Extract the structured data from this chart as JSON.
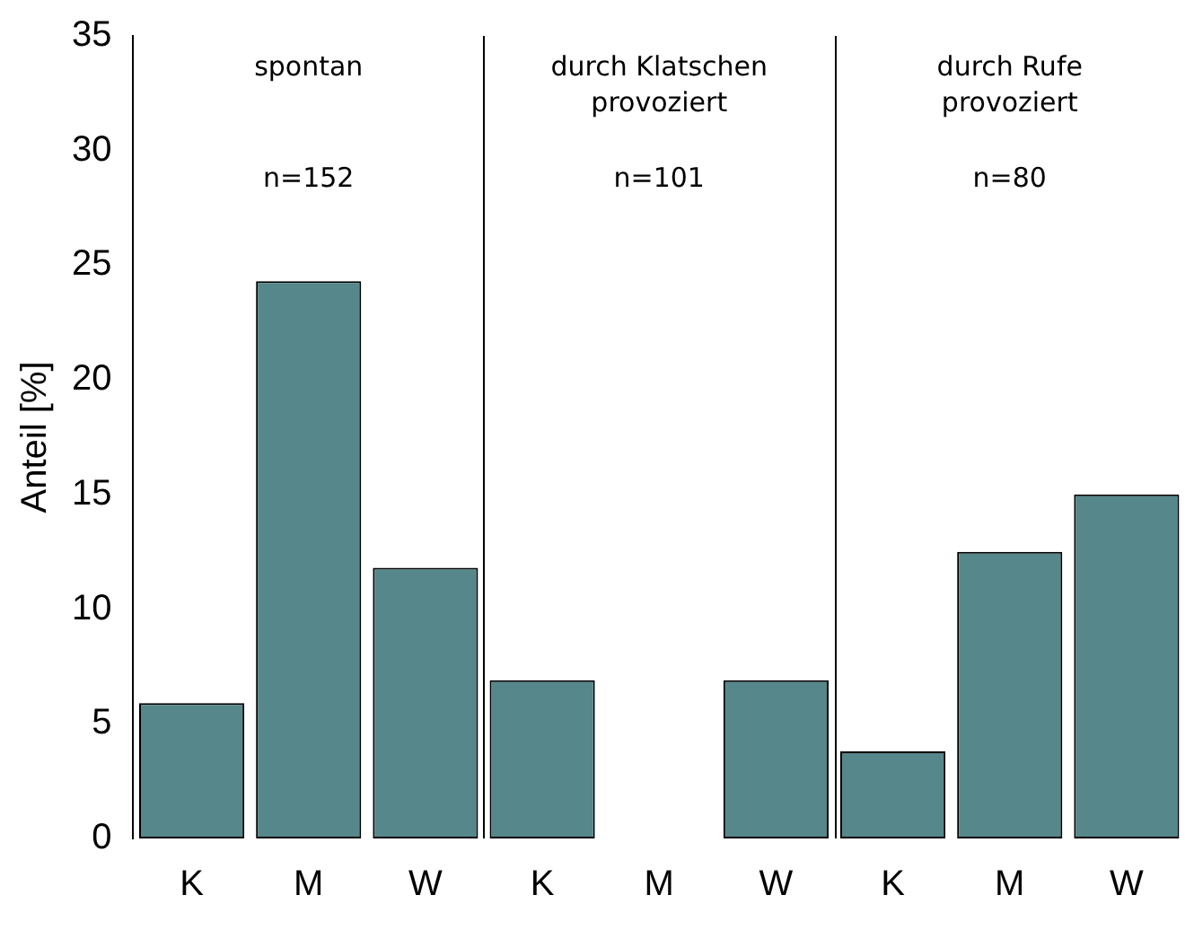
{
  "chart_data": {
    "type": "bar",
    "ylabel": "Anteil [%]",
    "categories": [
      "K",
      "M",
      "W",
      "K",
      "M",
      "W",
      "K",
      "M",
      "W"
    ],
    "values": [
      5.9,
      24.3,
      11.8,
      6.9,
      0,
      6.9,
      3.8,
      12.5,
      15.0
    ],
    "color": "#56878a",
    "ylim": [
      0,
      35
    ],
    "yticks": [
      0,
      5,
      10,
      15,
      20,
      25,
      30,
      35
    ],
    "grid": false,
    "legend": false,
    "annotations": [
      "spontan",
      "durch Klatschen provoziert",
      "durch Rufe provoziert",
      "n=152",
      "n=101",
      "n=80"
    ]
  }
}
